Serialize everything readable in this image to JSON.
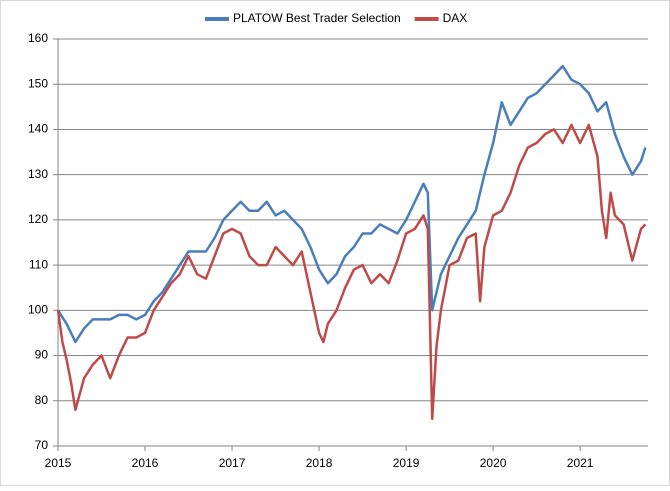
{
  "chart_data": {
    "type": "line",
    "xlim": [
      2015,
      2021.78
    ],
    "xticks": [
      2015,
      2016,
      2017,
      2018,
      2019,
      2020,
      2021
    ],
    "ylim": [
      70,
      160
    ],
    "yticks": [
      70,
      80,
      90,
      100,
      110,
      120,
      130,
      140,
      150,
      160
    ],
    "grid": true,
    "legend": "top",
    "series": [
      {
        "name": "PLATOW Best Trader Selection",
        "color": "#4a7ebb",
        "x": [
          2015.0,
          2015.1,
          2015.2,
          2015.3,
          2015.4,
          2015.5,
          2015.6,
          2015.7,
          2015.8,
          2015.9,
          2016.0,
          2016.1,
          2016.2,
          2016.3,
          2016.4,
          2016.5,
          2016.6,
          2016.7,
          2016.8,
          2016.9,
          2017.0,
          2017.1,
          2017.2,
          2017.3,
          2017.4,
          2017.5,
          2017.6,
          2017.7,
          2017.8,
          2017.9,
          2018.0,
          2018.1,
          2018.2,
          2018.3,
          2018.4,
          2018.5,
          2018.6,
          2018.7,
          2018.8,
          2018.9,
          2019.0,
          2019.1,
          2019.2,
          2019.25,
          2019.3,
          2019.35,
          2019.4,
          2019.5,
          2019.6,
          2019.7,
          2019.8,
          2019.9,
          2020.0,
          2020.1,
          2020.2,
          2020.3,
          2020.4,
          2020.5,
          2020.6,
          2020.7,
          2020.8,
          2020.9,
          2021.0,
          2021.1,
          2021.2,
          2021.3,
          2021.4,
          2021.5,
          2021.6,
          2021.7,
          2021.75
        ],
        "values": [
          100,
          97,
          93,
          96,
          98,
          98,
          98,
          99,
          99,
          98,
          99,
          102,
          104,
          107,
          110,
          113,
          113,
          113,
          116,
          120,
          122,
          124,
          122,
          122,
          124,
          121,
          122,
          120,
          118,
          114,
          109,
          106,
          108,
          112,
          114,
          117,
          117,
          119,
          118,
          117,
          120,
          124,
          128,
          126,
          100,
          104,
          108,
          112,
          116,
          119,
          122,
          130,
          137,
          146,
          141,
          144,
          147,
          148,
          150,
          152,
          154,
          151,
          150,
          148,
          144,
          146,
          139,
          134,
          130,
          133,
          136
        ]
      },
      {
        "name": "DAX",
        "color": "#be4b48",
        "x": [
          2015.0,
          2015.05,
          2015.1,
          2015.15,
          2015.2,
          2015.3,
          2015.4,
          2015.5,
          2015.6,
          2015.7,
          2015.8,
          2015.9,
          2016.0,
          2016.1,
          2016.2,
          2016.3,
          2016.4,
          2016.5,
          2016.6,
          2016.7,
          2016.8,
          2016.9,
          2017.0,
          2017.1,
          2017.2,
          2017.3,
          2017.4,
          2017.5,
          2017.6,
          2017.7,
          2017.8,
          2017.9,
          2018.0,
          2018.05,
          2018.1,
          2018.2,
          2018.3,
          2018.4,
          2018.5,
          2018.6,
          2018.7,
          2018.8,
          2018.9,
          2019.0,
          2019.1,
          2019.2,
          2019.25,
          2019.3,
          2019.35,
          2019.4,
          2019.5,
          2019.6,
          2019.7,
          2019.8,
          2019.85,
          2019.9,
          2020.0,
          2020.1,
          2020.2,
          2020.3,
          2020.4,
          2020.5,
          2020.6,
          2020.7,
          2020.8,
          2020.9,
          2021.0,
          2021.1,
          2021.2,
          2021.25,
          2021.3,
          2021.35,
          2021.4,
          2021.5,
          2021.6,
          2021.7,
          2021.75
        ],
        "values": [
          100,
          93,
          89,
          84,
          78,
          85,
          88,
          90,
          85,
          90,
          94,
          94,
          95,
          100,
          103,
          106,
          108,
          112,
          108,
          107,
          112,
          117,
          118,
          117,
          112,
          110,
          110,
          114,
          112,
          110,
          113,
          104,
          95,
          93,
          97,
          100,
          105,
          109,
          110,
          106,
          108,
          106,
          111,
          117,
          118,
          121,
          118,
          76,
          92,
          100,
          110,
          111,
          116,
          117,
          102,
          114,
          121,
          122,
          126,
          132,
          136,
          137,
          139,
          140,
          137,
          141,
          137,
          141,
          134,
          122,
          116,
          126,
          121,
          119,
          111,
          118,
          119
        ]
      }
    ]
  }
}
